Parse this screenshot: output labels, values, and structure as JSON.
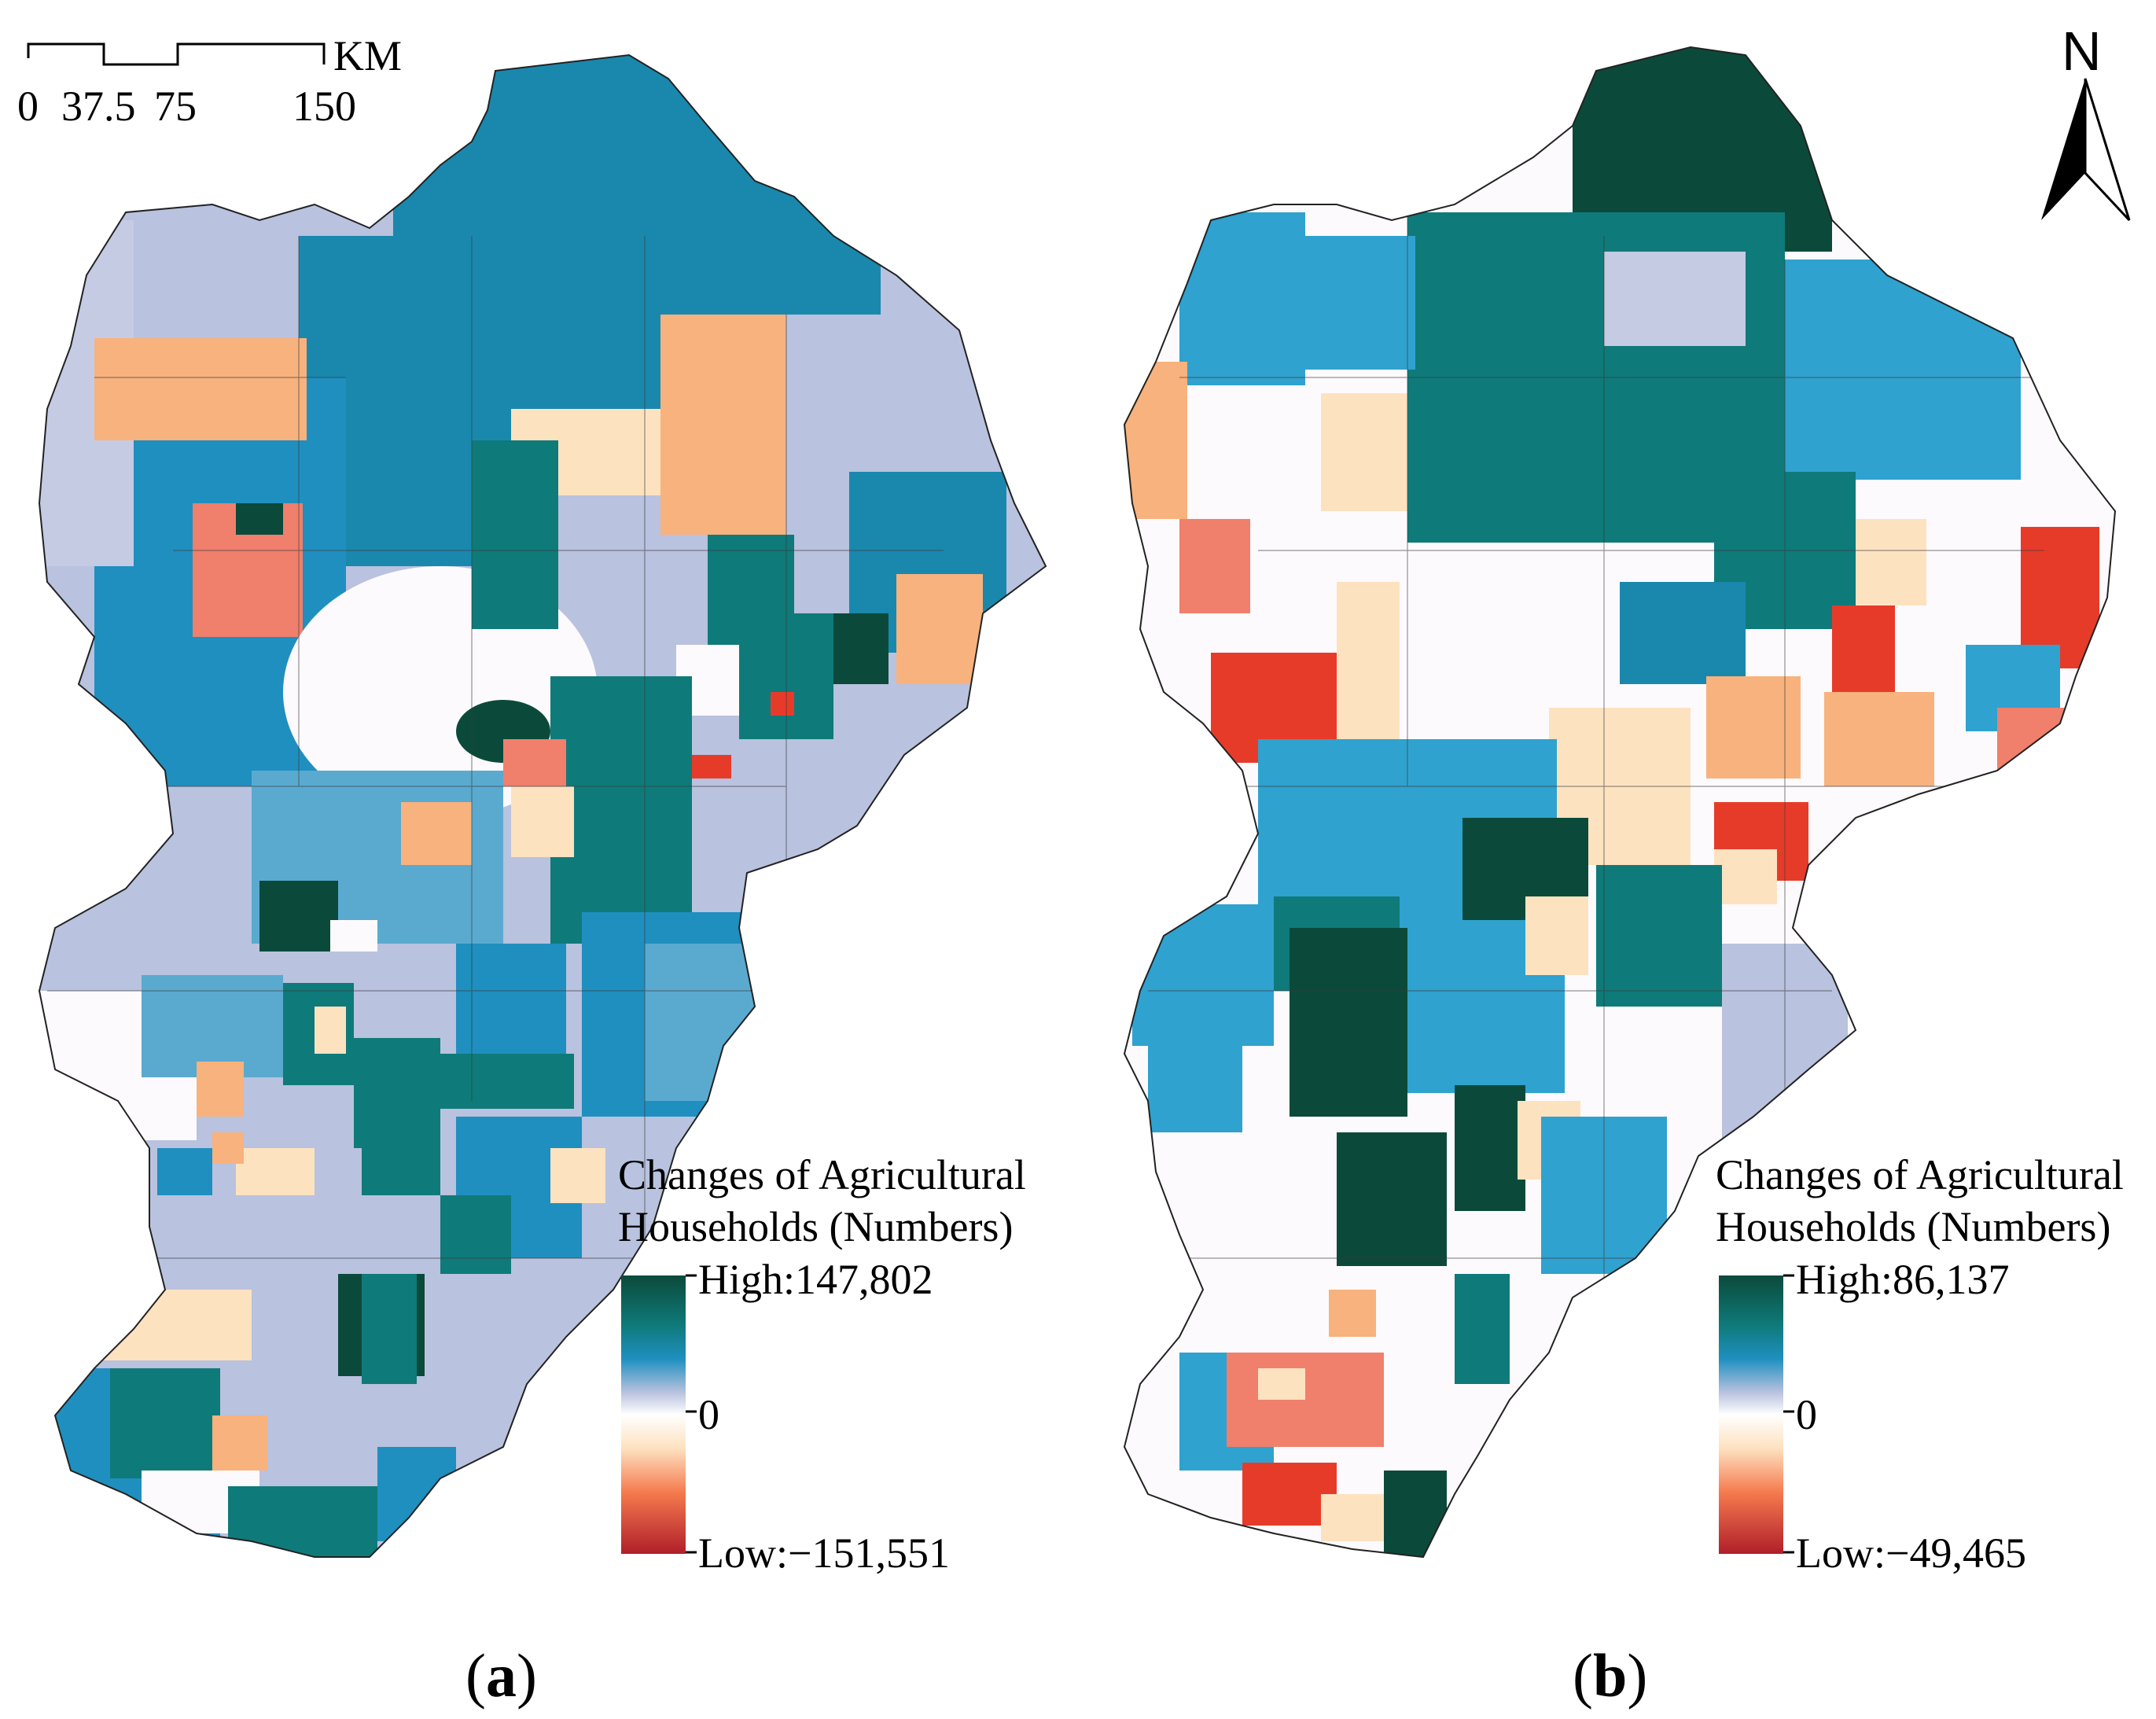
{
  "scale_bar": {
    "unit": "KM",
    "ticks": [
      "0",
      "37.5",
      "75",
      "150"
    ]
  },
  "north_arrow": {
    "label": "N"
  },
  "maps": [
    {
      "panel": "(a)",
      "panel_letter": "a",
      "legend": {
        "title_line1": "Changes of Agricultural",
        "title_line2": "Households (Numbers)",
        "high_label": "High:147,802",
        "mid_label": "0",
        "low_label": "Low:−151,551",
        "high_value": 147802,
        "low_value": -151551
      }
    },
    {
      "panel": "(b)",
      "panel_letter": "b",
      "legend": {
        "title_line1": "Changes of Agricultural",
        "title_line2": "Households (Numbers)",
        "high_label": "High:86,137",
        "mid_label": "0",
        "low_label": "Low:−49,465",
        "high_value": 86137,
        "low_value": -49465
      }
    }
  ],
  "colors": {
    "high": "#0b4a3a",
    "teal": "#0f7a7a",
    "blue": "#1f8fbf",
    "light_blue": "#5aaad0",
    "lavender": "#b9c2de",
    "white": "#fbf7fb",
    "peach": "#fde2c0",
    "orange": "#f8b27d",
    "salmon": "#f07f6c",
    "red": "#e73b2a",
    "low": "#b01e2a"
  }
}
